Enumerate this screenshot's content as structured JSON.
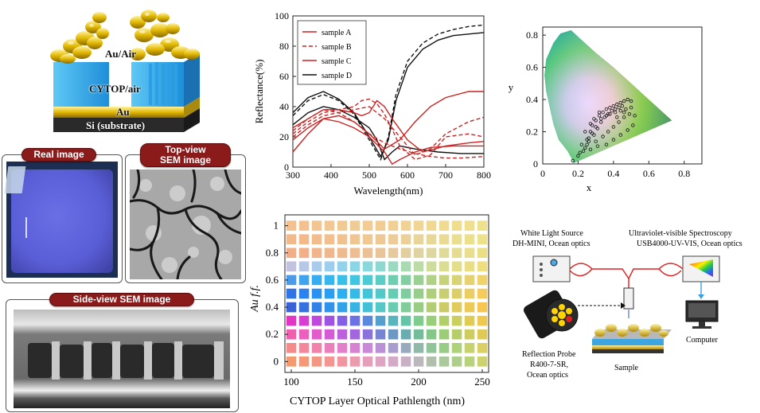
{
  "layer_stack": {
    "au_air": "Au/Air",
    "cytop_air": "CYTOP/air",
    "au": "Au",
    "si": "Si (substrate)"
  },
  "real_image": {
    "label": "Real image"
  },
  "top_view": {
    "label_line1": "Top-view",
    "label_line2": "SEM image"
  },
  "side_view": {
    "label": "Side-view SEM image"
  },
  "chart_data": [
    {
      "type": "line",
      "xlabel": "Wavelength(nm)",
      "ylabel": "Reflectance(%)",
      "xlim": [
        300,
        800
      ],
      "ylim": [
        0,
        100
      ],
      "xticks": [
        300,
        400,
        500,
        600,
        700,
        800
      ],
      "yticks": [
        0,
        20,
        40,
        60,
        80,
        100
      ],
      "legend_position": "top-left",
      "series": [
        {
          "name": "sample A",
          "color": "#cc2222",
          "dash": "solid"
        },
        {
          "name": "sample B",
          "color": "#cc2222",
          "dash": "dashed"
        },
        {
          "name": "sample C",
          "color": "#cc2222",
          "dash": "solid"
        },
        {
          "name": "sample D",
          "color": "#111111",
          "dash": "solid"
        }
      ],
      "curves": [
        {
          "color": "#111111",
          "dash": "dashed",
          "x": [
            300,
            340,
            380,
            420,
            460,
            500,
            530,
            550,
            570,
            600,
            640,
            680,
            720,
            760,
            800
          ],
          "y": [
            34,
            44,
            48,
            44,
            35,
            18,
            5,
            20,
            48,
            70,
            82,
            88,
            91,
            93,
            94
          ]
        },
        {
          "color": "#111111",
          "dash": "solid",
          "x": [
            300,
            340,
            380,
            420,
            460,
            500,
            530,
            550,
            570,
            600,
            640,
            680,
            720,
            760,
            800
          ],
          "y": [
            36,
            46,
            50,
            45,
            36,
            20,
            7,
            18,
            44,
            66,
            78,
            84,
            87,
            88,
            89
          ]
        },
        {
          "color": "#111111",
          "dash": "solid",
          "x": [
            300,
            340,
            380,
            420,
            460,
            500,
            520,
            540,
            560,
            580,
            620,
            680,
            740,
            800
          ],
          "y": [
            28,
            36,
            40,
            38,
            33,
            26,
            18,
            5,
            10,
            14,
            12,
            10,
            9,
            9
          ]
        },
        {
          "color": "#cc2222",
          "dash": "dashed",
          "x": [
            300,
            340,
            380,
            420,
            460,
            500,
            540,
            580,
            620,
            660,
            700,
            740,
            800
          ],
          "y": [
            24,
            32,
            38,
            36,
            30,
            22,
            16,
            12,
            9,
            7,
            6,
            6,
            7
          ]
        },
        {
          "color": "#cc2222",
          "dash": "dashed",
          "x": [
            300,
            340,
            380,
            420,
            460,
            480,
            500,
            520,
            540,
            560,
            580,
            620,
            660,
            700,
            760,
            800
          ],
          "y": [
            22,
            30,
            36,
            38,
            40,
            44,
            45,
            42,
            35,
            25,
            14,
            5,
            8,
            20,
            22,
            20
          ]
        },
        {
          "color": "#cc2222",
          "dash": "dashed",
          "x": [
            300,
            340,
            380,
            420,
            460,
            500,
            540,
            580,
            620,
            660,
            700,
            760,
            800
          ],
          "y": [
            20,
            28,
            34,
            36,
            38,
            40,
            32,
            20,
            8,
            12,
            22,
            30,
            33
          ]
        },
        {
          "color": "#cc2222",
          "dash": "solid",
          "x": [
            300,
            340,
            380,
            420,
            460,
            480,
            500,
            520,
            540,
            560,
            600,
            640,
            700,
            760,
            800
          ],
          "y": [
            26,
            32,
            38,
            38,
            36,
            34,
            36,
            44,
            40,
            32,
            18,
            10,
            14,
            16,
            17
          ]
        },
        {
          "color": "#cc2222",
          "dash": "solid",
          "x": [
            300,
            340,
            380,
            420,
            460,
            500,
            540,
            580,
            620,
            660,
            700,
            760,
            800
          ],
          "y": [
            10,
            22,
            32,
            34,
            30,
            22,
            12,
            18,
            30,
            40,
            46,
            50,
            50
          ]
        },
        {
          "color": "#cc2222",
          "dash": "solid",
          "x": [
            300,
            340,
            380,
            420,
            460,
            500,
            540,
            560,
            580,
            620,
            660,
            720,
            800
          ],
          "y": [
            18,
            26,
            32,
            30,
            26,
            20,
            10,
            2,
            5,
            10,
            13,
            14,
            14
          ]
        }
      ]
    },
    {
      "type": "scatter",
      "xlabel": "x",
      "ylabel": "y",
      "xlim": [
        0,
        0.9
      ],
      "ylim": [
        0,
        0.85
      ],
      "xticks": [
        "0",
        "0.2",
        "0.4",
        "0.6",
        "0.8"
      ],
      "yticks": [
        "0",
        "0.2",
        "0.4",
        "0.6",
        "0.8"
      ],
      "points": [
        [
          0.17,
          0.02
        ],
        [
          0.2,
          0.05
        ],
        [
          0.23,
          0.08
        ],
        [
          0.25,
          0.12
        ],
        [
          0.26,
          0.16
        ],
        [
          0.27,
          0.2
        ],
        [
          0.28,
          0.24
        ],
        [
          0.3,
          0.27
        ],
        [
          0.32,
          0.3
        ],
        [
          0.34,
          0.32
        ],
        [
          0.36,
          0.34
        ],
        [
          0.38,
          0.35
        ],
        [
          0.4,
          0.36
        ],
        [
          0.42,
          0.37
        ],
        [
          0.44,
          0.38
        ],
        [
          0.46,
          0.39
        ],
        [
          0.48,
          0.4
        ],
        [
          0.5,
          0.39
        ],
        [
          0.21,
          0.07
        ],
        [
          0.24,
          0.1
        ],
        [
          0.26,
          0.14
        ],
        [
          0.29,
          0.18
        ],
        [
          0.31,
          0.22
        ],
        [
          0.33,
          0.26
        ],
        [
          0.35,
          0.29
        ],
        [
          0.37,
          0.31
        ],
        [
          0.39,
          0.33
        ],
        [
          0.41,
          0.34
        ],
        [
          0.43,
          0.35
        ],
        [
          0.45,
          0.36
        ],
        [
          0.22,
          0.12
        ],
        [
          0.25,
          0.15
        ],
        [
          0.28,
          0.19
        ],
        [
          0.3,
          0.23
        ],
        [
          0.33,
          0.28
        ],
        [
          0.36,
          0.3
        ],
        [
          0.38,
          0.31
        ],
        [
          0.41,
          0.32
        ],
        [
          0.44,
          0.33
        ],
        [
          0.47,
          0.34
        ],
        [
          0.3,
          0.14
        ],
        [
          0.34,
          0.17
        ],
        [
          0.37,
          0.2
        ],
        [
          0.4,
          0.23
        ],
        [
          0.43,
          0.26
        ],
        [
          0.46,
          0.29
        ],
        [
          0.49,
          0.31
        ],
        [
          0.36,
          0.12
        ],
        [
          0.4,
          0.15
        ],
        [
          0.44,
          0.18
        ],
        [
          0.48,
          0.21
        ],
        [
          0.51,
          0.24
        ],
        [
          0.27,
          0.09
        ],
        [
          0.31,
          0.11
        ],
        [
          0.42,
          0.29
        ],
        [
          0.46,
          0.32
        ],
        [
          0.5,
          0.35
        ],
        [
          0.52,
          0.3
        ],
        [
          0.24,
          0.2
        ],
        [
          0.27,
          0.25
        ],
        [
          0.29,
          0.28
        ],
        [
          0.32,
          0.32
        ]
      ]
    },
    {
      "type": "heatmap",
      "xlabel": "CYTOP Layer Optical Pathlength (nm)",
      "ylabel": "Au f.f.",
      "xlim": [
        95,
        255
      ],
      "ylim": [
        -0.08,
        1.08
      ],
      "xticks": [
        100,
        150,
        200,
        250
      ],
      "yticks": [
        "0",
        "0.2",
        "0.4",
        "0.6",
        "0.8",
        "1"
      ],
      "x": [
        100,
        110,
        120,
        130,
        140,
        150,
        160,
        170,
        180,
        190,
        200,
        210,
        220,
        230,
        240,
        250
      ],
      "y": [
        0,
        0.1,
        0.2,
        0.3,
        0.4,
        0.5,
        0.6,
        0.7,
        0.8,
        0.9,
        1.0
      ],
      "rows": [
        [
          "#f3c08e",
          "#f4c18e",
          "#f3c590",
          "#f3c791",
          "#f1ca92",
          "#f1cb94",
          "#f2cc92",
          "#f1cd92",
          "#f0d093",
          "#f0d394",
          "#f0d594",
          "#f0d892",
          "#f0db90",
          "#f1dd8e",
          "#f0df8c",
          "#efe08a"
        ],
        [
          "#f2b98a",
          "#f3b98b",
          "#f2bc8c",
          "#f2c08e",
          "#f0c28f",
          "#efc591",
          "#efc892",
          "#eec995",
          "#eccd97",
          "#ebd099",
          "#e9d59a",
          "#e8d898",
          "#e9db94",
          "#eade90",
          "#ebe08c",
          "#ede18a"
        ],
        [
          "#f2ae86",
          "#f2af88",
          "#f2b48b",
          "#f0b78c",
          "#efba8e",
          "#eebe92",
          "#ecc095",
          "#e9c499",
          "#e6c99d",
          "#e2ce9f",
          "#dfd3a0",
          "#dcd79e",
          "#e0da98",
          "#e4dc92",
          "#e8de8c",
          "#ebdf86"
        ],
        [
          "#c2c3e0",
          "#b7c7e8",
          "#a9cbec",
          "#9ccfee",
          "#92d3ec",
          "#8ad6e6",
          "#88d8dc",
          "#8dd9cf",
          "#99dac0",
          "#a9dbb2",
          "#bcdca6",
          "#cedd9b",
          "#dbde92",
          "#e3de8a",
          "#eade84",
          "#efdd7e"
        ],
        [
          "#4b9be8",
          "#3ea4ee",
          "#37adf1",
          "#36b7ef",
          "#38bfea",
          "#40c6e1",
          "#4ccbd4",
          "#5ccdc4",
          "#6fceb2",
          "#84cfa1",
          "#9ad092",
          "#b0d186",
          "#c6d27c",
          "#d8d375",
          "#e6d36f",
          "#f0d26a"
        ],
        [
          "#2f74e6",
          "#2c82ee",
          "#2a90f2",
          "#2a9ff2",
          "#2daeee",
          "#36bbe6",
          "#42c4d9",
          "#53c9c8",
          "#67ccb4",
          "#7ecd9f",
          "#97ce8c",
          "#b0cf7d",
          "#c8cf72",
          "#dccf69",
          "#ebce62",
          "#f5cc5c"
        ],
        [
          "#3a62d8",
          "#3571e0",
          "#3281e6",
          "#3192ea",
          "#31a3ea",
          "#37b3e4",
          "#42c0d8",
          "#53c8c6",
          "#68ccb0",
          "#80cd99",
          "#9acd84",
          "#b3cd74",
          "#cbcc68",
          "#dfcb5e",
          "#edc956",
          "#f6c650"
        ],
        [
          "#e235c6",
          "#d83ed2",
          "#bf49dc",
          "#a052e3",
          "#8360e6",
          "#6a72e4",
          "#5a88dc",
          "#53a0cf",
          "#58b5bd",
          "#66c5a6",
          "#7ecd8e",
          "#98d07a",
          "#b2d06a",
          "#cbcf5e",
          "#e0cc55",
          "#efc84e"
        ],
        [
          "#ef5fae",
          "#ec5fbd",
          "#e35ccb",
          "#d35cd6",
          "#bd60dc",
          "#a366de",
          "#8a72da",
          "#7684d2",
          "#6b99c4",
          "#6aadb0",
          "#73bd9b",
          "#85c787",
          "#9dcc77",
          "#b7cd69",
          "#cdcd5f",
          "#e0ca56"
        ],
        [
          "#f48a8a",
          "#f3879b",
          "#f082ac",
          "#eb7fbd",
          "#e37fcb",
          "#d882d4",
          "#ca88d8",
          "#ba91d6",
          "#a99dcd",
          "#9aaabe",
          "#90b8ab",
          "#8fc598",
          "#99cd87",
          "#aed27a",
          "#c6d26e",
          "#dbcf63"
        ],
        [
          "#f49a6e",
          "#f59878",
          "#f49684",
          "#f39592",
          "#f196a0",
          "#ed99ae",
          "#e79eba",
          "#dfa4c2",
          "#d5aac6",
          "#c9b0c4",
          "#bcb7bc",
          "#b0c0ad",
          "#aac99c",
          "#adcf8b",
          "#b9d27c",
          "#ccd26e"
        ]
      ]
    }
  ],
  "setup": {
    "light_source_line1": "White Light Source",
    "light_source_line2": "DH-MINI, Ocean optics",
    "spectrometer_line1": "Ultraviolet-visible Spectroscopy",
    "spectrometer_line2": "USB4000-UV-VIS, Ocean optics",
    "probe_line1": "Reflection Probe",
    "probe_line2": "R400-7-SR,",
    "probe_line3": "Ocean optics",
    "computer": "Computer",
    "sample": "Sample"
  }
}
